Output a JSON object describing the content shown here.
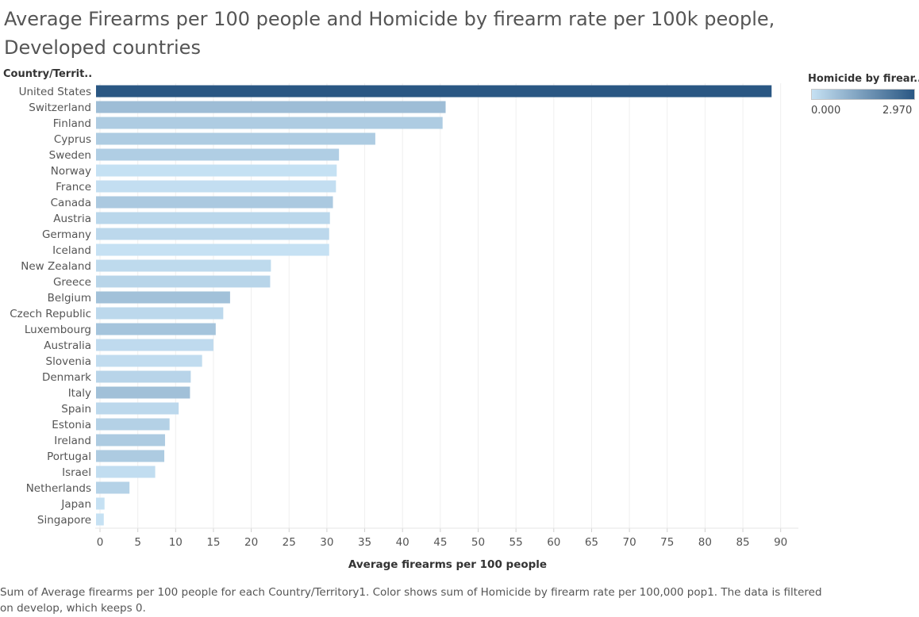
{
  "title": "Average Firearms per 100 people and Homicide by firearm rate per 100k people, Developed countries",
  "caption": "Sum of Average firearms per 100 people for each Country/Territory1.  Color shows sum of Homicide by firearm rate per 100,000 pop1. The data is filtered on develop, which keeps 0.",
  "legend": {
    "title": "Homicide by firear..",
    "min_label": "0.000",
    "max_label": "2.970",
    "min_color": "#c6e1f3",
    "max_color": "#2a5783"
  },
  "chart_data": {
    "type": "bar",
    "orientation": "horizontal",
    "row_header": "Country/Territ..",
    "xlabel": "Average firearms per 100 people",
    "xlim": [
      0,
      92
    ],
    "xticks": [
      0,
      5,
      10,
      15,
      20,
      25,
      30,
      35,
      40,
      45,
      50,
      55,
      60,
      65,
      70,
      75,
      80,
      85,
      90
    ],
    "grid": "vertical",
    "color_range": [
      0,
      2.97
    ],
    "categories": [
      "United States",
      "Switzerland",
      "Finland",
      "Cyprus",
      "Sweden",
      "Norway",
      "France",
      "Canada",
      "Austria",
      "Germany",
      "Iceland",
      "New Zealand",
      "Greece",
      "Belgium",
      "Czech Republic",
      "Luxembourg",
      "Australia",
      "Slovenia",
      "Denmark",
      "Italy",
      "Spain",
      "Estonia",
      "Ireland",
      "Portugal",
      "Israel",
      "Netherlands",
      "Japan",
      "Singapore"
    ],
    "values": [
      88.8,
      45.7,
      45.3,
      36.4,
      31.6,
      31.3,
      31.2,
      30.8,
      30.4,
      30.3,
      30.3,
      22.6,
      22.5,
      17.2,
      16.3,
      15.3,
      15.0,
      13.5,
      12.0,
      11.9,
      10.4,
      9.2,
      8.6,
      8.5,
      7.3,
      3.9,
      0.6,
      0.5
    ],
    "color_values": [
      2.97,
      0.77,
      0.45,
      0.46,
      0.41,
      0.01,
      0.06,
      0.51,
      0.22,
      0.19,
      0.0,
      0.16,
      0.26,
      0.68,
      0.19,
      0.62,
      0.14,
      0.1,
      0.27,
      0.71,
      0.19,
      0.35,
      0.48,
      0.48,
      0.09,
      0.33,
      0.0,
      0.0
    ]
  }
}
